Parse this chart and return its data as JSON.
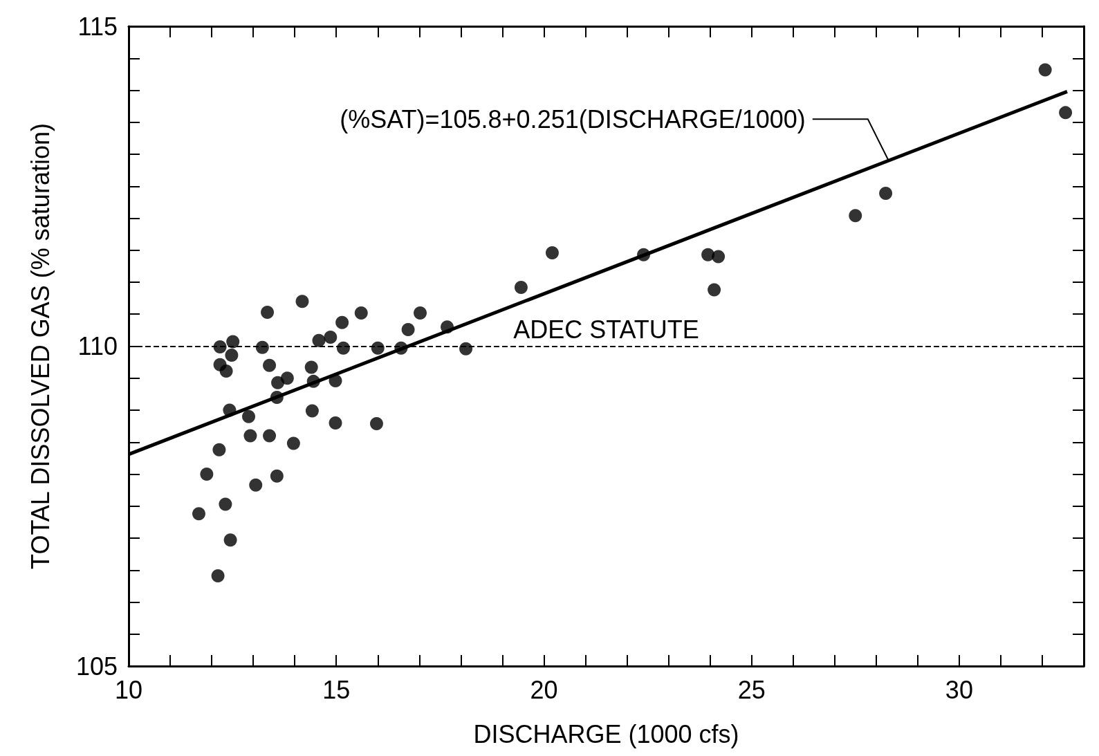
{
  "chart_data": {
    "type": "scatter",
    "xlabel": "DISCHARGE (1000 cfs)",
    "ylabel": "TOTAL DISSOLVED GAS (% saturation)",
    "xlim": [
      10,
      33
    ],
    "ylim": [
      105,
      115
    ],
    "xticks": [
      10,
      {
        "value": 11,
        "label": null
      },
      {
        "value": 12,
        "label": null
      },
      {
        "value": 13,
        "label": null
      },
      {
        "value": 14,
        "label": null
      },
      15,
      {
        "value": 16,
        "label": null
      },
      {
        "value": 17,
        "label": null
      },
      {
        "value": 18,
        "label": null
      },
      {
        "value": 19,
        "label": null
      },
      20,
      {
        "value": 21,
        "label": null
      },
      {
        "value": 22,
        "label": null
      },
      {
        "value": 23,
        "label": null
      },
      {
        "value": 24,
        "label": null
      },
      25,
      {
        "value": 26,
        "label": null
      },
      {
        "value": 27,
        "label": null
      },
      {
        "value": 28,
        "label": null
      },
      {
        "value": 29,
        "label": null
      },
      30,
      {
        "value": 31,
        "label": null
      },
      {
        "value": 32,
        "label": null
      }
    ],
    "yticks": [
      105,
      {
        "value": 105.5,
        "label": null
      },
      {
        "value": 106,
        "label": null
      },
      {
        "value": 106.5,
        "label": null
      },
      {
        "value": 107,
        "label": null
      },
      {
        "value": 107.5,
        "label": null
      },
      {
        "value": 108,
        "label": null
      },
      {
        "value": 108.5,
        "label": null
      },
      {
        "value": 109,
        "label": null
      },
      {
        "value": 109.5,
        "label": null
      },
      110,
      {
        "value": 110.5,
        "label": null
      },
      {
        "value": 111,
        "label": null
      },
      {
        "value": 111.5,
        "label": null
      },
      {
        "value": 112,
        "label": null
      },
      {
        "value": 112.5,
        "label": null
      },
      {
        "value": 113,
        "label": null
      },
      {
        "value": 113.5,
        "label": null
      },
      {
        "value": 114,
        "label": null
      },
      {
        "value": 114.5,
        "label": null
      },
      115
    ],
    "marker": "circle",
    "series": [
      {
        "color": "#000000",
        "x": [
          32.07,
          32.56,
          28.23,
          27.5,
          20.2,
          22.4,
          23.95,
          24.2,
          24.1,
          19.45,
          17.67,
          18.12,
          17.02,
          16.73,
          16.56,
          16.0,
          15.6,
          15.14,
          15.17,
          14.86,
          14.58,
          14.18,
          14.4,
          14.45,
          14.42,
          14.98,
          14.98,
          15.97,
          13.34,
          13.22,
          13.39,
          13.59,
          13.82,
          13.57,
          13.39,
          13.97,
          13.57,
          13.06,
          12.89,
          12.93,
          12.51,
          12.2,
          12.48,
          12.2,
          12.35,
          12.43,
          12.18,
          11.88,
          12.33,
          11.69,
          12.45,
          12.15
        ],
        "values": [
          114.32,
          113.65,
          112.39,
          112.04,
          111.46,
          111.43,
          111.43,
          111.4,
          110.88,
          110.92,
          110.3,
          109.96,
          110.52,
          110.26,
          109.97,
          109.97,
          110.52,
          110.37,
          109.97,
          110.14,
          110.09,
          110.7,
          109.67,
          109.45,
          108.99,
          109.46,
          108.8,
          108.79,
          110.53,
          109.98,
          109.7,
          109.43,
          109.5,
          109.2,
          108.6,
          108.48,
          107.97,
          107.83,
          108.9,
          108.6,
          110.07,
          109.99,
          109.86,
          109.71,
          109.61,
          109.0,
          108.38,
          108.0,
          107.53,
          107.38,
          106.97,
          106.41
        ]
      },
      {
        "type": "line",
        "marker": "none",
        "color": "#000000",
        "x": [
          10,
          32.6
        ],
        "values": [
          108.31,
          113.98
        ]
      }
    ],
    "ref_lines": [
      {
        "axis": "y",
        "value": 110,
        "label": "ADEC STATUTE",
        "line_style": "dashed",
        "color": "#000000"
      }
    ],
    "annotations": [
      {
        "text": "(%SAT)=105.8+0.251(DISCHARGE/1000)",
        "x": 28.3,
        "y": 112.9
      }
    ]
  }
}
